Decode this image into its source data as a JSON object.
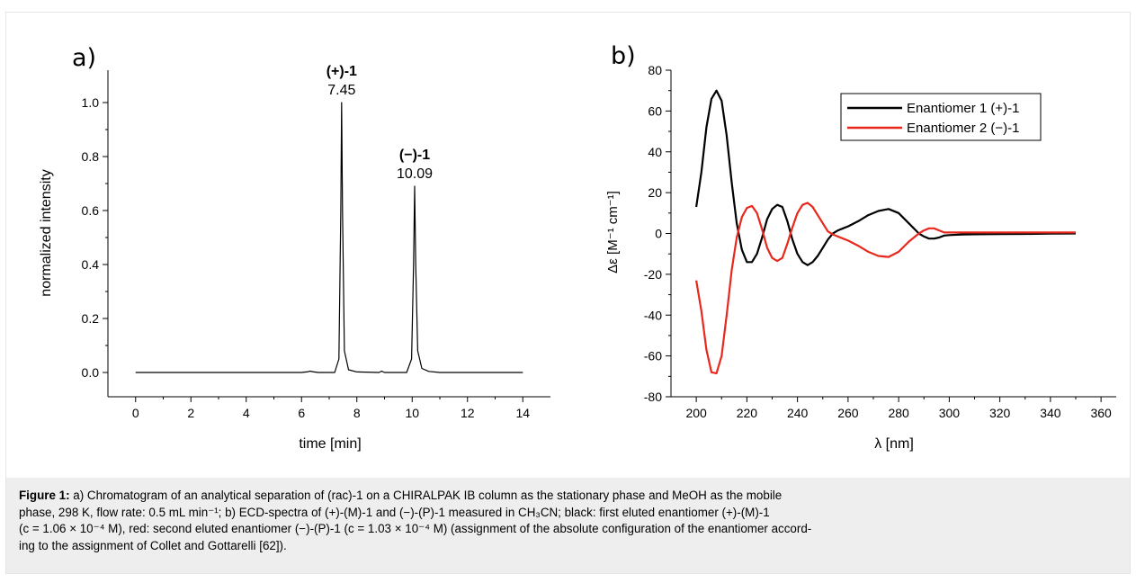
{
  "chart_data": [
    {
      "type": "line",
      "panel_label": "a)",
      "xlabel": "time [min]",
      "ylabel": "normalized intensity",
      "xlim": [
        -1,
        15
      ],
      "ylim": [
        -0.09,
        1.12
      ],
      "x_ticks": [
        "0",
        "2",
        "4",
        "6",
        "8",
        "10",
        "12",
        "14"
      ],
      "y_ticks": [
        "0.0",
        "0.2",
        "0.4",
        "0.6",
        "0.8",
        "1.0"
      ],
      "grid": false,
      "series": [
        {
          "color": "#000000",
          "x": [
            0,
            6.0,
            6.25,
            6.3,
            6.4,
            6.6,
            7.2,
            7.35,
            7.42,
            7.45,
            7.48,
            7.55,
            7.7,
            8.0,
            8.8,
            8.9,
            9.0,
            9.8,
            9.98,
            10.05,
            10.09,
            10.13,
            10.2,
            10.35,
            10.6,
            11.0,
            14.0
          ],
          "y": [
            0.0,
            0.0,
            0.003,
            0.005,
            0.003,
            0.0,
            0.0,
            0.05,
            0.6,
            1.0,
            0.6,
            0.08,
            0.01,
            0.002,
            0.0,
            0.005,
            0.0,
            0.0,
            0.05,
            0.4,
            0.69,
            0.4,
            0.08,
            0.015,
            0.004,
            0.0,
            0.0
          ]
        }
      ],
      "annotations": [
        {
          "compound": "(+)-1",
          "retention_time": "7.45",
          "x": 7.45,
          "y": 1.0
        },
        {
          "compound": "(−)-1",
          "retention_time": "10.09",
          "x": 10.09,
          "y": 0.69
        }
      ]
    },
    {
      "type": "line",
      "panel_label": "b)",
      "xlabel": "λ [nm]",
      "ylabel": "Δε [M⁻¹ cm⁻¹]",
      "xlim": [
        190,
        366
      ],
      "ylim": [
        -80,
        80
      ],
      "x_ticks": [
        "200",
        "220",
        "240",
        "260",
        "280",
        "300",
        "320",
        "340",
        "360"
      ],
      "y_ticks": [
        "-80",
        "-60",
        "-40",
        "-20",
        "0",
        "20",
        "40",
        "60",
        "80"
      ],
      "grid": false,
      "legend_position": "top-right",
      "series": [
        {
          "name": "Enantiomer 1 (+)-1",
          "color": "#000000",
          "x": [
            200,
            202,
            204,
            206,
            208,
            210,
            212,
            214,
            216,
            218,
            220,
            222,
            224,
            226,
            228,
            230,
            232,
            234,
            236,
            238,
            240,
            242,
            244,
            246,
            248,
            250,
            252,
            254,
            256,
            258,
            260,
            264,
            268,
            272,
            276,
            280,
            284,
            288,
            290,
            292,
            294,
            296,
            298,
            300,
            305,
            310,
            320,
            330,
            340,
            350
          ],
          "y": [
            13,
            30,
            52,
            66,
            70,
            65,
            48,
            25,
            5,
            -8,
            -14,
            -14,
            -10,
            -2,
            7,
            12,
            14,
            13,
            6,
            -3,
            -10,
            -14,
            -15.5,
            -14,
            -11,
            -7,
            -3,
            0,
            1.5,
            2.5,
            3.5,
            6,
            9,
            11,
            12,
            10,
            5,
            0,
            -1.5,
            -2.5,
            -2.5,
            -2,
            -1,
            -0.8,
            -0.5,
            -0.4,
            -0.3,
            -0.2,
            -0.1,
            0
          ]
        },
        {
          "name": "Enantiomer 2 (−)-1",
          "color": "#e8281c",
          "x": [
            200,
            202,
            204,
            206,
            208,
            210,
            212,
            214,
            216,
            218,
            220,
            222,
            224,
            226,
            228,
            230,
            232,
            234,
            236,
            238,
            240,
            242,
            244,
            246,
            248,
            250,
            252,
            254,
            256,
            258,
            260,
            264,
            268,
            272,
            276,
            280,
            284,
            288,
            290,
            292,
            294,
            296,
            298,
            300,
            305,
            310,
            320,
            330,
            340,
            350
          ],
          "y": [
            -23,
            -38,
            -57,
            -68,
            -68.5,
            -60,
            -40,
            -18,
            -2,
            8,
            12.5,
            13.5,
            10,
            2,
            -7,
            -12,
            -13.5,
            -12,
            -5,
            3,
            10,
            14,
            15,
            13,
            9,
            5,
            1,
            -0.5,
            -1.5,
            -2.5,
            -3.5,
            -6,
            -9,
            -11,
            -11.5,
            -9,
            -4,
            0,
            1.5,
            2.5,
            2.5,
            1.5,
            0.5,
            0.5,
            0.5,
            0.5,
            0.5,
            0.5,
            0.5,
            0.5
          ]
        }
      ]
    }
  ],
  "caption": {
    "label": "Figure 1:",
    "line1": " a) Chromatogram of an analytical separation of (rac)-1 on a CHIRALPAK IB column as the stationary phase and MeOH as the mobile",
    "line2": "phase, 298 K, flow rate: 0.5 mL min⁻¹; b) ECD-spectra of (+)-(M)-1 and (−)-(P)-1 measured in CH₃CN; black: first eluted enantiomer (+)-(M)-1",
    "line3": "(c = 1.06 × 10⁻⁴ M), red: second eluted enantiomer (−)-(P)-1 (c = 1.03 × 10⁻⁴ M) (assignment of the absolute configuration of the enantiomer accord-",
    "line4": "ing to the assignment of Collet and Gottarelli [62])."
  }
}
